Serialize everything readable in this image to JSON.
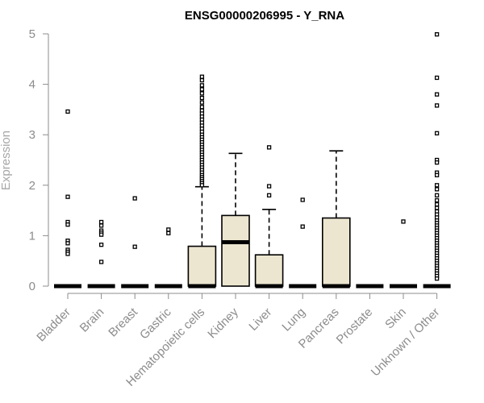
{
  "chart_data": {
    "type": "boxplot",
    "title": "ENSG00000206995 - Y_RNA",
    "xlabel": "",
    "ylabel": "Expression",
    "ylim": [
      0,
      5
    ],
    "yticks": [
      "0",
      "1",
      "2",
      "3",
      "4",
      "5"
    ],
    "colors": {
      "box_fill": "#ece6d0",
      "box_stroke": "#000000",
      "axis": "#8c8c8c",
      "label": "#8c8c8c"
    },
    "categories": [
      "Bladder",
      "Brain",
      "Breast",
      "Gastric",
      "Hematopoietic cells",
      "Kidney",
      "Liver",
      "Lung",
      "Pancreas",
      "Prostate",
      "Skin",
      "Unknown / Other"
    ],
    "boxes": [
      {
        "q1": 0,
        "median": 0,
        "q3": 0,
        "whisker_low": 0,
        "whisker_high": 0,
        "outliers": [
          3.46,
          1.77,
          1.27,
          1.22,
          0.9,
          0.85,
          0.72,
          0.68,
          0.64
        ]
      },
      {
        "q1": 0,
        "median": 0,
        "q3": 0,
        "whisker_low": 0,
        "whisker_high": 0,
        "outliers": [
          1.27,
          1.2,
          1.1,
          1.06,
          1.02,
          0.82,
          0.48
        ]
      },
      {
        "q1": 0,
        "median": 0,
        "q3": 0,
        "whisker_low": 0,
        "whisker_high": 0,
        "outliers": [
          1.74,
          0.78
        ]
      },
      {
        "q1": 0,
        "median": 0,
        "q3": 0,
        "whisker_low": 0,
        "whisker_high": 0,
        "outliers": [
          1.12,
          1.05
        ]
      },
      {
        "q1": 0,
        "median": 0,
        "q3": 0.79,
        "whisker_low": 0,
        "whisker_high": 1.97,
        "outliers": [
          4.15,
          4.08,
          3.98,
          3.9,
          3.82,
          3.73,
          3.64,
          3.55,
          3.48,
          3.42,
          3.36,
          3.3,
          3.24,
          3.18,
          3.12,
          3.06,
          3.0,
          2.95,
          2.9,
          2.85,
          2.8,
          2.75,
          2.7,
          2.65,
          2.6,
          2.55,
          2.5,
          2.45,
          2.4,
          2.35,
          2.3,
          2.25,
          2.2,
          2.16,
          2.12,
          2.08,
          2.04,
          2.0
        ]
      },
      {
        "q1": 0,
        "median": 0.87,
        "q3": 1.4,
        "whisker_low": 0,
        "whisker_high": 2.63,
        "outliers": []
      },
      {
        "q1": 0,
        "median": 0,
        "q3": 0.62,
        "whisker_low": 0,
        "whisker_high": 1.52,
        "outliers": [
          2.75,
          1.98,
          1.8
        ]
      },
      {
        "q1": 0,
        "median": 0,
        "q3": 0,
        "whisker_low": 0,
        "whisker_high": 0,
        "outliers": [
          1.71,
          1.18
        ]
      },
      {
        "q1": 0,
        "median": 0,
        "q3": 1.35,
        "whisker_low": 0,
        "whisker_high": 2.68,
        "outliers": []
      },
      {
        "q1": 0,
        "median": 0,
        "q3": 0,
        "whisker_low": 0,
        "whisker_high": 0,
        "outliers": []
      },
      {
        "q1": 0,
        "median": 0,
        "q3": 0,
        "whisker_low": 0,
        "whisker_high": 0,
        "outliers": [
          1.28
        ]
      },
      {
        "q1": 0,
        "median": 0,
        "q3": 0,
        "whisker_low": 0,
        "whisker_high": 0,
        "outliers": [
          4.99,
          4.13,
          3.8,
          3.58,
          3.03,
          2.5,
          2.45,
          2.25,
          2.2,
          2.0,
          1.92,
          1.8,
          1.7,
          1.62,
          1.55,
          1.48,
          1.42,
          1.36,
          1.3,
          1.25,
          1.2,
          1.15,
          1.1,
          1.05,
          1.0,
          0.95,
          0.9,
          0.85,
          0.8,
          0.75,
          0.7,
          0.65,
          0.6,
          0.55,
          0.5,
          0.45,
          0.4,
          0.35,
          0.3,
          0.25,
          0.2,
          0.15
        ]
      }
    ]
  }
}
